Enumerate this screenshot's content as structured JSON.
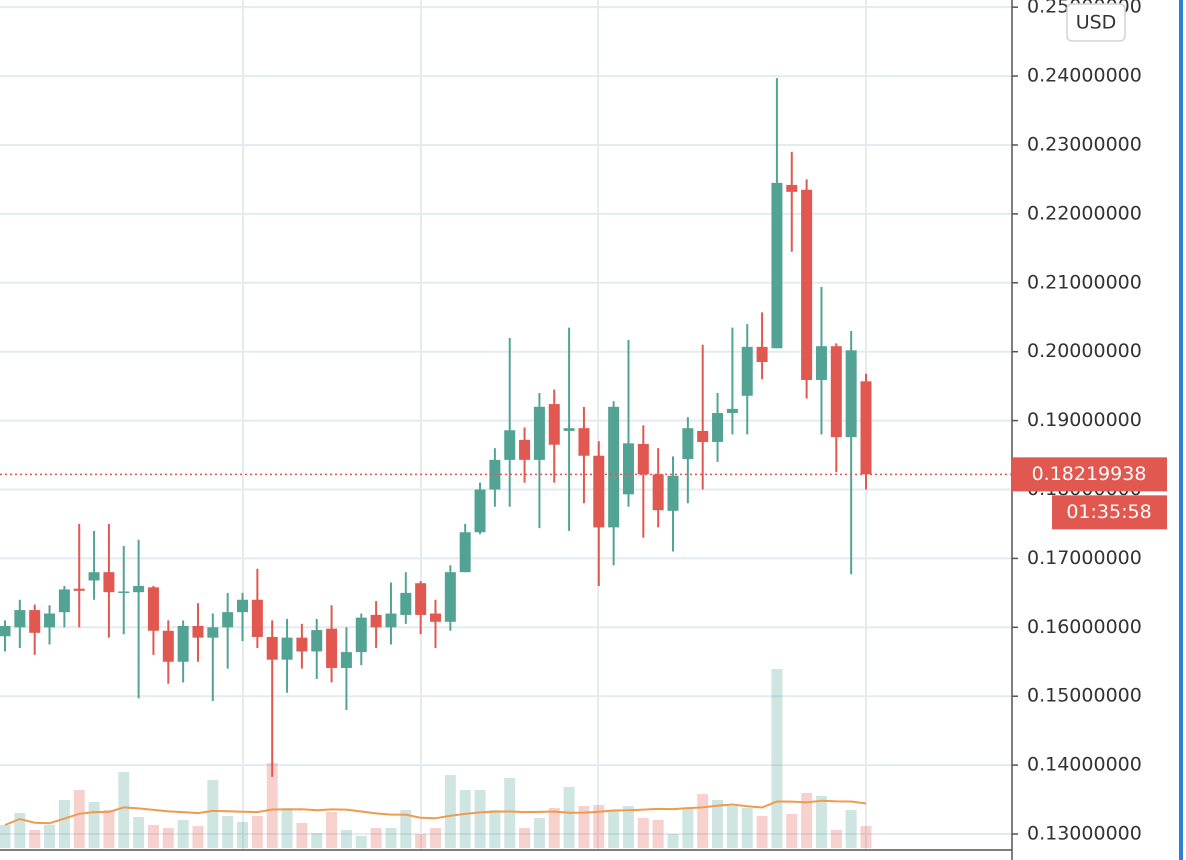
{
  "chart_data": {
    "type": "candlestick",
    "currency": "USD",
    "countdown": "01:35:58",
    "up_color": "#53a395",
    "down_color": "#e0584f",
    "volume_ma_color": "#ef9a4f",
    "grid": true,
    "ylim": [
      0.12623,
      0.25104
    ],
    "yticks": [
      {
        "value": 0.13,
        "label": "0.13000000"
      },
      {
        "value": 0.14,
        "label": "0.14000000"
      },
      {
        "value": 0.15,
        "label": "0.15000000"
      },
      {
        "value": 0.16,
        "label": "0.16000000"
      },
      {
        "value": 0.17,
        "label": "0.17000000"
      },
      {
        "value": 0.18,
        "label": "0.18000000"
      },
      {
        "value": 0.19,
        "label": "0.19000000"
      },
      {
        "value": 0.2,
        "label": "0.20000000"
      },
      {
        "value": 0.21,
        "label": "0.21000000"
      },
      {
        "value": 0.22,
        "label": "0.22000000"
      },
      {
        "value": 0.23,
        "label": "0.23000000"
      },
      {
        "value": 0.24,
        "label": "0.24000000"
      },
      {
        "value": 0.25,
        "label": "0.25000000"
      }
    ],
    "open": [
      0.1587,
      0.16,
      0.1625,
      0.16,
      0.1622,
      0.1656,
      0.1668,
      0.168,
      0.165,
      0.1651,
      0.1658,
      0.1595,
      0.155,
      0.1602,
      0.1585,
      0.16,
      0.1622,
      0.164,
      0.1586,
      0.1553,
      0.1585,
      0.1565,
      0.1598,
      0.1541,
      0.1564,
      0.1618,
      0.16,
      0.1618,
      0.1664,
      0.162,
      0.1608,
      0.168,
      0.1738,
      0.18,
      0.1843,
      0.1872,
      0.1843,
      0.1924,
      0.1885,
      0.1889,
      0.1849,
      0.1745,
      0.1793,
      0.1866,
      0.1822,
      0.1769,
      0.1844,
      0.1885,
      0.1869,
      0.1911,
      0.1936,
      0.2007,
      0.2005,
      0.2242,
      0.2235,
      0.1959,
      0.2008,
      0.1876,
      0.1957
    ],
    "high": [
      0.161,
      0.164,
      0.1633,
      0.1632,
      0.166,
      0.175,
      0.174,
      0.175,
      0.1718,
      0.1727,
      0.166,
      0.161,
      0.161,
      0.1635,
      0.162,
      0.165,
      0.165,
      0.1685,
      0.161,
      0.1612,
      0.1605,
      0.1612,
      0.1632,
      0.16,
      0.162,
      0.1638,
      0.1665,
      0.168,
      0.1667,
      0.164,
      0.169,
      0.175,
      0.181,
      0.186,
      0.202,
      0.189,
      0.194,
      0.1945,
      0.2035,
      0.192,
      0.187,
      0.1928,
      0.2017,
      0.1893,
      0.186,
      0.1848,
      0.1905,
      0.201,
      0.194,
      0.2035,
      0.204,
      0.2057,
      0.2397,
      0.229,
      0.225,
      0.2094,
      0.2012,
      0.203,
      0.1968
    ],
    "low": [
      0.1565,
      0.157,
      0.156,
      0.1575,
      0.16,
      0.16,
      0.164,
      0.1585,
      0.159,
      0.1497,
      0.156,
      0.1518,
      0.152,
      0.155,
      0.1493,
      0.154,
      0.158,
      0.157,
      0.1383,
      0.1505,
      0.154,
      0.1525,
      0.152,
      0.148,
      0.1545,
      0.157,
      0.1575,
      0.1605,
      0.159,
      0.157,
      0.1595,
      0.168,
      0.1735,
      0.1775,
      0.1775,
      0.181,
      0.1744,
      0.181,
      0.174,
      0.178,
      0.166,
      0.169,
      0.1775,
      0.173,
      0.1745,
      0.171,
      0.178,
      0.18,
      0.184,
      0.188,
      0.188,
      0.196,
      0.2005,
      0.2145,
      0.1932,
      0.188,
      0.1825,
      0.1677,
      0.18
    ],
    "close": [
      0.1602,
      0.1625,
      0.1592,
      0.162,
      0.1655,
      0.1653,
      0.168,
      0.1651,
      0.1652,
      0.166,
      0.1595,
      0.155,
      0.1602,
      0.1585,
      0.16,
      0.1622,
      0.164,
      0.1586,
      0.1553,
      0.1585,
      0.1565,
      0.1596,
      0.1541,
      0.1564,
      0.1614,
      0.16,
      0.162,
      0.165,
      0.1618,
      0.1608,
      0.168,
      0.1738,
      0.18,
      0.1843,
      0.1886,
      0.1843,
      0.192,
      0.1865,
      0.1889,
      0.1849,
      0.1745,
      0.192,
      0.1867,
      0.1822,
      0.177,
      0.182,
      0.1889,
      0.1869,
      0.1911,
      0.1917,
      0.2007,
      0.1985,
      0.2245,
      0.2232,
      0.1959,
      0.2008,
      0.1876,
      0.2002,
      0.18219938
    ],
    "volume": [
      23,
      35,
      18,
      23,
      48,
      58,
      46,
      38,
      76,
      31,
      23,
      20,
      28,
      22,
      68,
      32,
      26,
      32,
      85,
      40,
      25,
      15,
      36,
      18,
      12,
      20,
      20,
      38,
      14,
      20,
      73,
      58,
      58,
      38,
      70,
      20,
      30,
      40,
      61,
      42,
      43,
      38,
      42,
      30,
      28,
      14,
      40,
      54,
      48,
      42,
      40,
      32,
      179,
      34,
      55,
      52,
      18,
      38,
      22
    ]
  }
}
